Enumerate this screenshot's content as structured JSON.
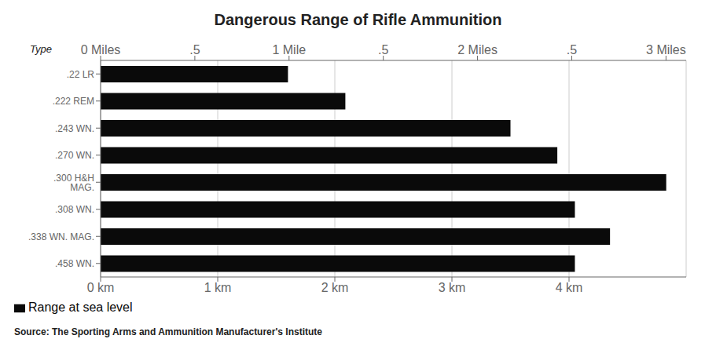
{
  "chart_data": {
    "type": "bar",
    "orientation": "horizontal",
    "title": "Dangerous Range of Rifle Ammunition",
    "ylabel": "Type",
    "categories": [
      ".22 LR",
      ".222 REM",
      ".243 WN.",
      ".270 WN.",
      ".300 H&H MAG.",
      ".308 WN.",
      ".338 WN. MAG.",
      ".458 WN."
    ],
    "series": [
      {
        "name": "Range at sea level",
        "color": "#0a0a0a",
        "values": [
          1.6,
          2.09,
          3.5,
          3.9,
          4.83,
          4.05,
          4.35,
          4.05
        ]
      }
    ],
    "xlim": [
      0,
      5.0
    ],
    "xticks": [
      {
        "value": 0,
        "label": "0 km"
      },
      {
        "value": 1,
        "label": "1 km"
      },
      {
        "value": 2,
        "label": "2 km"
      },
      {
        "value": 3,
        "label": "3 km"
      },
      {
        "value": 4,
        "label": "4 km"
      }
    ],
    "x2lim": [
      0,
      3.106855
    ],
    "x2ticks": [
      {
        "value": 0,
        "label": "0 Miles"
      },
      {
        "value": 0.5,
        "label": ".5"
      },
      {
        "value": 1.0,
        "label": "1 Mile"
      },
      {
        "value": 1.5,
        "label": ".5"
      },
      {
        "value": 2.0,
        "label": "2 Miles"
      },
      {
        "value": 2.5,
        "label": ".5"
      },
      {
        "value": 3.0,
        "label": "3 Miles"
      }
    ],
    "grid": true,
    "legend": "bottom",
    "source": "Source: The Sporting Arms and Ammunition Manufacturer's Institute"
  }
}
